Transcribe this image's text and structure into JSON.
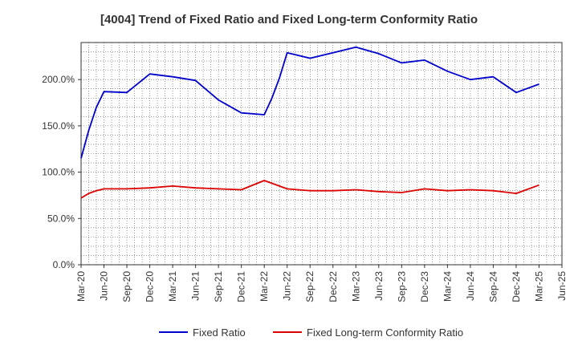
{
  "chart_data": {
    "type": "line",
    "title": "[4004]  Trend of Fixed Ratio and Fixed Long-term Conformity Ratio",
    "xlabel": "",
    "ylabel": "",
    "ylim": [
      0,
      240
    ],
    "x_ticks": [
      "Mar-20",
      "Jun-20",
      "Sep-20",
      "Dec-20",
      "Mar-21",
      "Jun-21",
      "Sep-21",
      "Dec-21",
      "Mar-22",
      "Jun-22",
      "Sep-22",
      "Dec-22",
      "Mar-23",
      "Jun-23",
      "Sep-23",
      "Dec-23",
      "Mar-24",
      "Jun-24",
      "Sep-24",
      "Dec-24",
      "Mar-25",
      "Jun-25"
    ],
    "y_ticks": [
      "0.0%",
      "50.0%",
      "100.0%",
      "150.0%",
      "200.0%"
    ],
    "y_tick_values": [
      0,
      50,
      100,
      150,
      200
    ],
    "grid": true,
    "legend_position": "bottom",
    "series": [
      {
        "name": "Fixed Ratio",
        "color": "#0000cc",
        "points": [
          [
            "Mar-20",
            115
          ],
          [
            "Apr-20",
            145
          ],
          [
            "May-20",
            170
          ],
          [
            "Jun-20",
            187
          ],
          [
            "Sep-20",
            186
          ],
          [
            "Dec-20",
            206
          ],
          [
            "Mar-21",
            203
          ],
          [
            "Jun-21",
            199
          ],
          [
            "Sep-21",
            178
          ],
          [
            "Dec-21",
            164
          ],
          [
            "Mar-22",
            162
          ],
          [
            "Apr-22",
            180
          ],
          [
            "May-22",
            202
          ],
          [
            "Jun-22",
            229
          ],
          [
            "Sep-22",
            223
          ],
          [
            "Dec-22",
            229
          ],
          [
            "Mar-23",
            235
          ],
          [
            "Jun-23",
            228
          ],
          [
            "Sep-23",
            218
          ],
          [
            "Dec-23",
            221
          ],
          [
            "Mar-24",
            209
          ],
          [
            "Jun-24",
            200
          ],
          [
            "Sep-24",
            203
          ],
          [
            "Dec-24",
            186
          ],
          [
            "Mar-25",
            195
          ]
        ]
      },
      {
        "name": "Fixed Long-term Conformity Ratio",
        "color": "#dd0000",
        "points": [
          [
            "Mar-20",
            72
          ],
          [
            "Apr-20",
            77
          ],
          [
            "May-20",
            80
          ],
          [
            "Jun-20",
            82
          ],
          [
            "Sep-20",
            82
          ],
          [
            "Dec-20",
            83
          ],
          [
            "Mar-21",
            85
          ],
          [
            "Jun-21",
            83
          ],
          [
            "Sep-21",
            82
          ],
          [
            "Dec-21",
            81
          ],
          [
            "Mar-22",
            91
          ],
          [
            "Jun-22",
            82
          ],
          [
            "Sep-22",
            80
          ],
          [
            "Dec-22",
            80
          ],
          [
            "Mar-23",
            81
          ],
          [
            "Jun-23",
            79
          ],
          [
            "Sep-23",
            78
          ],
          [
            "Dec-23",
            82
          ],
          [
            "Mar-24",
            80
          ],
          [
            "Jun-24",
            81
          ],
          [
            "Sep-24",
            80
          ],
          [
            "Dec-24",
            77
          ],
          [
            "Mar-25",
            86
          ]
        ]
      }
    ]
  }
}
